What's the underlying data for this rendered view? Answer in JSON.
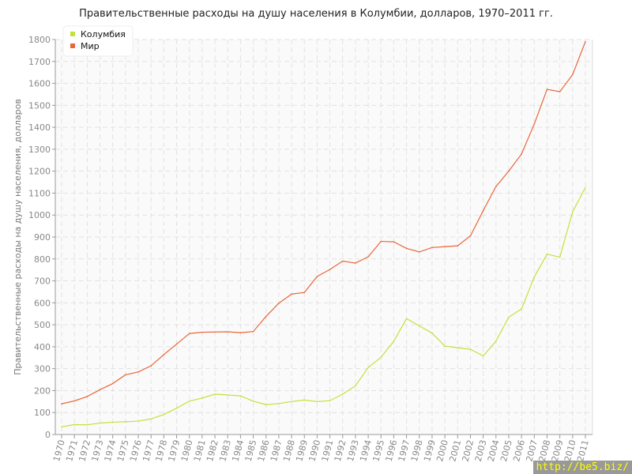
{
  "chart_data": {
    "type": "line",
    "title": "Правительственные расходы на душу населения в Колумбии, долларов, 1970–2011 гг.",
    "xlabel": "",
    "ylabel": "Правительственные расходы на душу населения, долларов",
    "ylim": [
      0,
      1800
    ],
    "yticks": [
      0,
      100,
      200,
      300,
      400,
      500,
      600,
      700,
      800,
      900,
      1000,
      1100,
      1200,
      1300,
      1400,
      1500,
      1600,
      1700,
      1800
    ],
    "grid": true,
    "legend": "top-left",
    "x": [
      1970,
      1971,
      1972,
      1973,
      1974,
      1975,
      1976,
      1977,
      1978,
      1979,
      1980,
      1981,
      1982,
      1983,
      1984,
      1985,
      1986,
      1987,
      1988,
      1989,
      1990,
      1991,
      1992,
      1993,
      1994,
      1995,
      1996,
      1997,
      1998,
      1999,
      2000,
      2001,
      2002,
      2003,
      2004,
      2005,
      2006,
      2007,
      2008,
      2009,
      2010,
      2011
    ],
    "series": [
      {
        "name": "Колумбия",
        "color": "#c5e03a",
        "values": [
          35,
          45,
          44,
          52,
          56,
          58,
          61,
          71,
          91,
          120,
          152,
          166,
          184,
          180,
          176,
          152,
          136,
          141,
          150,
          157,
          150,
          154,
          184,
          222,
          305,
          352,
          425,
          528,
          495,
          462,
          403,
          395,
          388,
          358,
          425,
          535,
          572,
          718,
          822,
          808,
          1015,
          1125
        ]
      },
      {
        "name": "Мир",
        "color": "#e8673a",
        "values": [
          140,
          153,
          173,
          204,
          232,
          272,
          285,
          313,
          364,
          412,
          460,
          466,
          467,
          468,
          464,
          469,
          538,
          598,
          640,
          647,
          720,
          752,
          790,
          781,
          810,
          880,
          878,
          848,
          832,
          852,
          856,
          860,
          905,
          1020,
          1130,
          1200,
          1278,
          1415,
          1573,
          1562,
          1640,
          1790
        ]
      }
    ]
  },
  "watermark": "http://be5.biz/"
}
